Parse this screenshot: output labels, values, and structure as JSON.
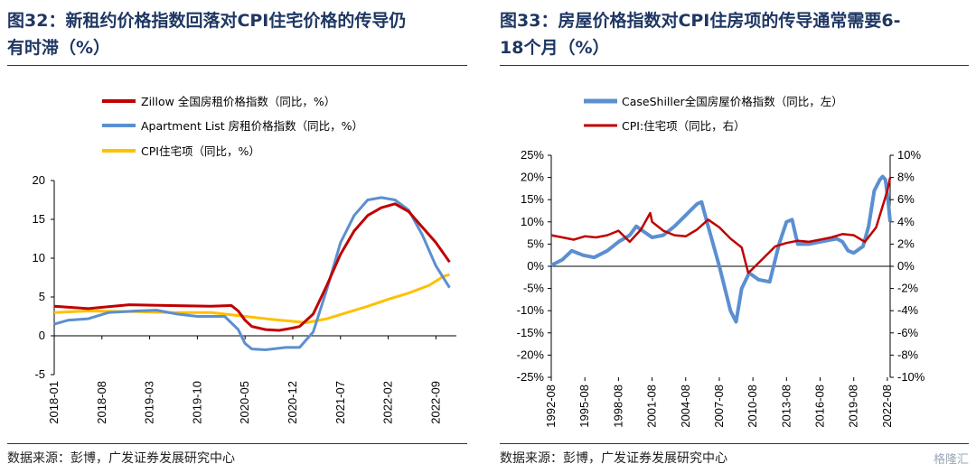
{
  "left": {
    "title_line1": "图32：新租约价格指数回落对CPI住宅价格的传导仍",
    "title_line2": "有时滞（%）",
    "source": "数据来源：彭博，广发证券发展研究中心",
    "legend": [
      "Zillow 全国房租价格指数（同比，%）",
      "Apartment List 房租价格指数（同比，%）",
      "CPI住宅项（同比，%）"
    ]
  },
  "right": {
    "title_line1": "图33：房屋价格指数对CPI住房项的传导通常需要6-",
    "title_line2": "18个月（%）",
    "source": "数据来源：彭博，广发证券发展研究中心",
    "legend": [
      "CaseShiller全国房屋价格指数（同比，左）",
      "CPI:住宅项（同比，右）"
    ]
  },
  "watermark": "格隆汇",
  "colors": {
    "red": "#c00000",
    "blue": "#5b8fd0",
    "yellow": "#ffc000",
    "title": "#1f3763"
  },
  "chart_data": [
    {
      "type": "line",
      "ylim": [
        -5,
        20
      ],
      "yticks": [
        -5,
        0,
        5,
        10,
        15,
        20
      ],
      "xlim": [
        "2018-01",
        "2022-12"
      ],
      "xticks": [
        "2018-01",
        "2018-08",
        "2019-03",
        "2019-10",
        "2020-05",
        "2020-12",
        "2021-07",
        "2022-02",
        "2022-09"
      ],
      "series": [
        {
          "name": "Zillow 全国房租价格指数（同比，%）",
          "color": "#c00000",
          "x": [
            "2018-01",
            "2018-06",
            "2018-12",
            "2019-06",
            "2019-12",
            "2020-03",
            "2020-04",
            "2020-05",
            "2020-06",
            "2020-08",
            "2020-10",
            "2020-12",
            "2021-01",
            "2021-03",
            "2021-05",
            "2021-07",
            "2021-09",
            "2021-11",
            "2022-01",
            "2022-03",
            "2022-05",
            "2022-07",
            "2022-09",
            "2022-11"
          ],
          "values": [
            3.8,
            3.5,
            4.0,
            3.9,
            3.8,
            3.9,
            3.2,
            2.0,
            1.2,
            0.8,
            0.7,
            1.0,
            1.2,
            2.8,
            6.5,
            10.5,
            13.5,
            15.5,
            16.5,
            17.0,
            16.0,
            14.0,
            12.0,
            9.5
          ]
        },
        {
          "name": "Apartment List 房租价格指数（同比，%）",
          "color": "#5b8fd0",
          "x": [
            "2018-01",
            "2018-03",
            "2018-06",
            "2018-09",
            "2019-01",
            "2019-04",
            "2019-07",
            "2019-10",
            "2020-02",
            "2020-04",
            "2020-05",
            "2020-06",
            "2020-08",
            "2020-11",
            "2021-01",
            "2021-03",
            "2021-05",
            "2021-07",
            "2021-09",
            "2021-11",
            "2022-01",
            "2022-03",
            "2022-05",
            "2022-07",
            "2022-09",
            "2022-11"
          ],
          "values": [
            1.5,
            2.0,
            2.2,
            3.0,
            3.2,
            3.3,
            2.8,
            2.5,
            2.5,
            0.8,
            -1.0,
            -1.7,
            -1.8,
            -1.5,
            -1.5,
            0.5,
            6.0,
            12.0,
            15.5,
            17.5,
            17.8,
            17.5,
            16.2,
            13.0,
            9.0,
            6.2
          ]
        },
        {
          "name": "CPI住宅项（同比，%）",
          "color": "#ffc000",
          "x": [
            "2018-01",
            "2018-06",
            "2019-01",
            "2019-06",
            "2019-12",
            "2020-05",
            "2020-09",
            "2021-02",
            "2021-05",
            "2021-08",
            "2021-11",
            "2022-02",
            "2022-05",
            "2022-08",
            "2022-10",
            "2022-11"
          ],
          "values": [
            3.0,
            3.2,
            3.1,
            3.0,
            3.0,
            2.5,
            2.1,
            1.7,
            2.2,
            3.0,
            3.8,
            4.7,
            5.5,
            6.5,
            7.6,
            7.9
          ]
        }
      ]
    },
    {
      "type": "line",
      "ylim_left": [
        -25,
        25
      ],
      "yticks_left": [
        "-25%",
        "-20%",
        "-15%",
        "-10%",
        "-5%",
        "0%",
        "5%",
        "10%",
        "15%",
        "20%",
        "25%"
      ],
      "ylim_right": [
        -10,
        10
      ],
      "yticks_right": [
        "-10%",
        "-8%",
        "-6%",
        "-4%",
        "-2%",
        "0%",
        "2%",
        "4%",
        "6%",
        "8%",
        "10%"
      ],
      "xlim": [
        "1992-08",
        "2022-11"
      ],
      "xticks": [
        "1992-08",
        "1995-08",
        "1998-08",
        "2001-08",
        "2004-08",
        "2007-08",
        "2010-08",
        "2013-08",
        "2016-08",
        "2019-08",
        "2022-08"
      ],
      "series": [
        {
          "name": "CaseShiller全国房屋价格指数（同比，左）",
          "color": "#5b8fd0",
          "axis": "left",
          "x": [
            "1992-08",
            "1993-08",
            "1994-06",
            "1995-06",
            "1996-06",
            "1997-08",
            "1998-08",
            "1999-08",
            "2000-03",
            "2001-08",
            "2002-08",
            "2003-08",
            "2004-08",
            "2005-08",
            "2006-01",
            "2006-08",
            "2007-08",
            "2008-08",
            "2009-02",
            "2009-08",
            "2010-04",
            "2011-02",
            "2012-02",
            "2012-12",
            "2013-08",
            "2014-02",
            "2014-08",
            "2015-08",
            "2016-08",
            "2017-08",
            "2018-02",
            "2018-08",
            "2019-02",
            "2019-08",
            "2020-06",
            "2020-12",
            "2021-06",
            "2021-12",
            "2022-03",
            "2022-06",
            "2022-09",
            "2022-11"
          ],
          "values": [
            0.2,
            1.5,
            3.5,
            2.5,
            2.0,
            3.5,
            5.5,
            7.0,
            9.0,
            6.5,
            7.0,
            9.0,
            11.5,
            14.0,
            14.5,
            9.0,
            0.0,
            -10.0,
            -12.5,
            -5.0,
            -1.5,
            -3.0,
            -3.5,
            5.0,
            10.0,
            10.5,
            5.0,
            5.0,
            5.5,
            6.0,
            6.2,
            5.5,
            3.5,
            3.0,
            4.5,
            9.0,
            17.0,
            19.5,
            20.2,
            19.5,
            14.5,
            10.0
          ]
        },
        {
          "name": "CPI:住宅项（同比，右）",
          "color": "#c00000",
          "axis": "right",
          "x": [
            "1992-08",
            "1993-08",
            "1994-08",
            "1995-08",
            "1996-08",
            "1997-08",
            "1998-08",
            "1999-08",
            "2000-08",
            "2001-06",
            "2001-08",
            "2002-08",
            "2003-08",
            "2004-08",
            "2005-08",
            "2006-08",
            "2007-08",
            "2008-08",
            "2009-08",
            "2010-03",
            "2010-08",
            "2011-08",
            "2012-08",
            "2013-08",
            "2014-08",
            "2015-08",
            "2016-08",
            "2017-08",
            "2018-08",
            "2019-08",
            "2020-08",
            "2021-08",
            "2022-08",
            "2022-11"
          ],
          "values": [
            2.8,
            2.6,
            2.4,
            2.7,
            2.6,
            2.8,
            3.2,
            2.2,
            3.3,
            4.8,
            4.0,
            3.2,
            2.8,
            2.7,
            3.3,
            4.2,
            3.5,
            2.5,
            1.7,
            -0.6,
            -0.2,
            0.8,
            1.8,
            2.1,
            2.3,
            2.2,
            2.4,
            2.6,
            2.9,
            2.8,
            2.2,
            3.5,
            6.8,
            8.0
          ]
        }
      ]
    }
  ]
}
